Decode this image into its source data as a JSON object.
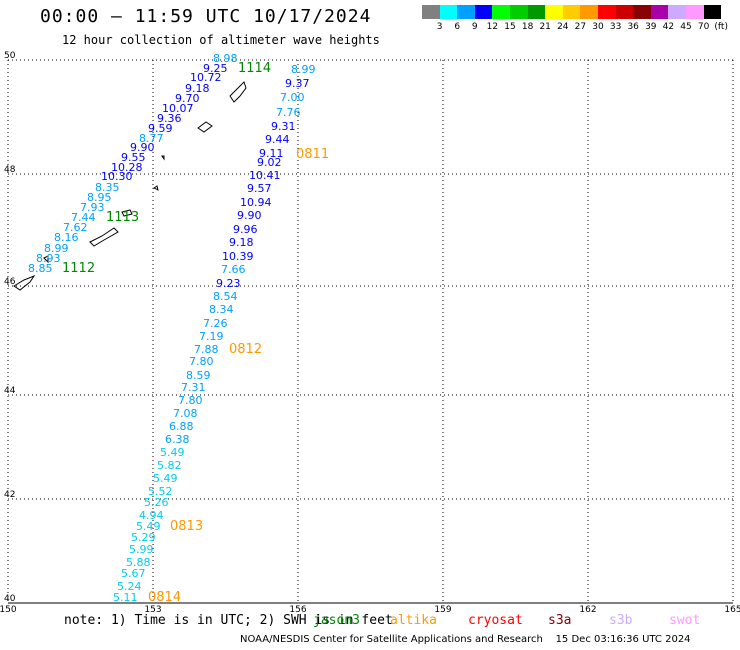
{
  "header": {
    "title": "00:00 – 11:59 UTC 10/17/2024",
    "subtitle": "12 hour collection of altimeter wave heights"
  },
  "legend": {
    "colors": [
      "#808080",
      "#00ffff",
      "#00a0ff",
      "#0000ff",
      "#00ff00",
      "#00cc00",
      "#009900",
      "#ffff00",
      "#ffcc00",
      "#ff9900",
      "#ff0000",
      "#cc0000",
      "#880000",
      "#aa00aa",
      "#ccaaff",
      "#ff99ff",
      "#000000"
    ],
    "labels": [
      "3",
      "6",
      "9",
      "12",
      "15",
      "18",
      "21",
      "24",
      "27",
      "30",
      "33",
      "36",
      "39",
      "42",
      "45",
      "70",
      "(ft)"
    ]
  },
  "axes": {
    "x_labels": [
      "150",
      "153",
      "156",
      "159",
      "162",
      "165"
    ],
    "y_labels": [
      "50",
      "48",
      "46",
      "44",
      "42",
      "40"
    ]
  },
  "passes": [
    {
      "label": "1114",
      "color": "#008800"
    },
    {
      "label": "0811",
      "color": "#ff9900"
    },
    {
      "label": "1113",
      "color": "#008800"
    },
    {
      "label": "1112",
      "color": "#008800"
    },
    {
      "label": "0812",
      "color": "#ff9900"
    },
    {
      "label": "0813",
      "color": "#ff9900"
    },
    {
      "label": "0814",
      "color": "#ff9900"
    }
  ],
  "tracks": {
    "track_1114": [
      {
        "v": "8.98",
        "c": "#00a0ff"
      },
      {
        "v": "9.25",
        "c": "#0000ff"
      },
      {
        "v": "10.72",
        "c": "#0000ff"
      },
      {
        "v": "9.18",
        "c": "#0000ff"
      },
      {
        "v": "9.70",
        "c": "#0000ff"
      },
      {
        "v": "10.07",
        "c": "#0000ff"
      },
      {
        "v": "9.36",
        "c": "#0000ff"
      },
      {
        "v": "9.59",
        "c": "#0000ff"
      },
      {
        "v": "8.77",
        "c": "#00a0ff"
      },
      {
        "v": "9.90",
        "c": "#0000ff"
      },
      {
        "v": "9.55",
        "c": "#0000ff"
      },
      {
        "v": "10.28",
        "c": "#0000ff"
      },
      {
        "v": "10.30",
        "c": "#0000ff"
      },
      {
        "v": "8.35",
        "c": "#00a0ff"
      },
      {
        "v": "8.95",
        "c": "#00a0ff"
      },
      {
        "v": "7.93",
        "c": "#00a0ff"
      },
      {
        "v": "7.44",
        "c": "#00a0ff"
      },
      {
        "v": "7.62",
        "c": "#00a0ff"
      },
      {
        "v": "8.16",
        "c": "#00a0ff"
      },
      {
        "v": "8.99",
        "c": "#00a0ff"
      },
      {
        "v": "8.93",
        "c": "#00a0ff"
      },
      {
        "v": "8.85",
        "c": "#00a0ff"
      }
    ],
    "track_0811": [
      {
        "v": "8.99",
        "c": "#00a0ff"
      },
      {
        "v": "9.37",
        "c": "#0000ff"
      },
      {
        "v": "7.00",
        "c": "#00a0ff"
      },
      {
        "v": "7.76",
        "c": "#00a0ff"
      },
      {
        "v": "9.31",
        "c": "#0000ff"
      },
      {
        "v": "9.44",
        "c": "#0000ff"
      },
      {
        "v": "9.11",
        "c": "#0000ff"
      },
      {
        "v": "9.02",
        "c": "#0000ff"
      },
      {
        "v": "10.41",
        "c": "#0000ff"
      },
      {
        "v": "9.57",
        "c": "#0000ff"
      },
      {
        "v": "10.94",
        "c": "#0000ff"
      },
      {
        "v": "9.90",
        "c": "#0000ff"
      },
      {
        "v": "9.96",
        "c": "#0000ff"
      },
      {
        "v": "9.18",
        "c": "#0000ff"
      },
      {
        "v": "10.39",
        "c": "#0000ff"
      },
      {
        "v": "7.66",
        "c": "#00a0ff"
      },
      {
        "v": "9.23",
        "c": "#0000ff"
      },
      {
        "v": "8.54",
        "c": "#00a0ff"
      },
      {
        "v": "8.34",
        "c": "#00a0ff"
      },
      {
        "v": "7.26",
        "c": "#00a0ff"
      },
      {
        "v": "7.19",
        "c": "#00a0ff"
      },
      {
        "v": "7.88",
        "c": "#00a0ff"
      },
      {
        "v": "7.80",
        "c": "#00a0ff"
      },
      {
        "v": "8.59",
        "c": "#00a0ff"
      },
      {
        "v": "7.31",
        "c": "#00a0ff"
      },
      {
        "v": "7.80",
        "c": "#00a0ff"
      },
      {
        "v": "7.08",
        "c": "#00a0ff"
      },
      {
        "v": "6.88",
        "c": "#00a0ff"
      },
      {
        "v": "6.38",
        "c": "#00a0ff"
      },
      {
        "v": "5.49",
        "c": "#00ccee"
      },
      {
        "v": "5.82",
        "c": "#00ccee"
      },
      {
        "v": "5.49",
        "c": "#00ccee"
      },
      {
        "v": "5.52",
        "c": "#00ccee"
      },
      {
        "v": "5.26",
        "c": "#00ccee"
      },
      {
        "v": "4.94",
        "c": "#00ccee"
      },
      {
        "v": "5.49",
        "c": "#00ccee"
      },
      {
        "v": "5.29",
        "c": "#00ccee"
      },
      {
        "v": "5.99",
        "c": "#00ccee"
      },
      {
        "v": "5.88",
        "c": "#00ccee"
      },
      {
        "v": "5.67",
        "c": "#00ccee"
      },
      {
        "v": "5.24",
        "c": "#00ccee"
      },
      {
        "v": "5.11",
        "c": "#00ccee"
      }
    ]
  },
  "note": "note: 1) Time is in UTC; 2) SWH is in feet",
  "satellites": [
    {
      "name": "jason3",
      "color": "#008800"
    },
    {
      "name": "altika",
      "color": "#ff9900"
    },
    {
      "name": "cryosat",
      "color": "#ff0000"
    },
    {
      "name": "s3a",
      "color": "#880000"
    },
    {
      "name": "s3b",
      "color": "#ccaaff"
    },
    {
      "name": "swot",
      "color": "#ff99ff"
    }
  ],
  "footer": "NOAA/NESDIS Center for Satellite Applications and Research    15 Dec 03:16:36 UTC 2024"
}
